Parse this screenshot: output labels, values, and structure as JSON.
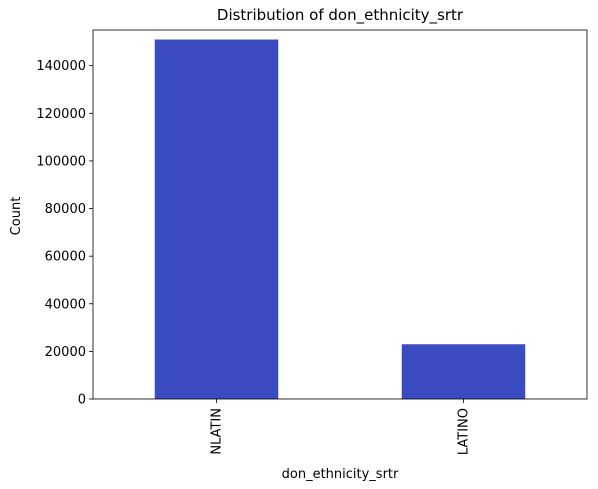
{
  "chart_data": {
    "type": "bar",
    "title": "Distribution of don_ethnicity_srtr",
    "xlabel": "don_ethnicity_srtr",
    "ylabel": "Count",
    "categories": [
      "NLATIN",
      "LATINO"
    ],
    "values": [
      151000,
      23000
    ],
    "ylim": [
      0,
      155000
    ],
    "yticks": [
      0,
      20000,
      40000,
      60000,
      80000,
      100000,
      120000,
      140000
    ],
    "bar_color": "#3b4cc0",
    "grid": false,
    "legend": "none"
  }
}
